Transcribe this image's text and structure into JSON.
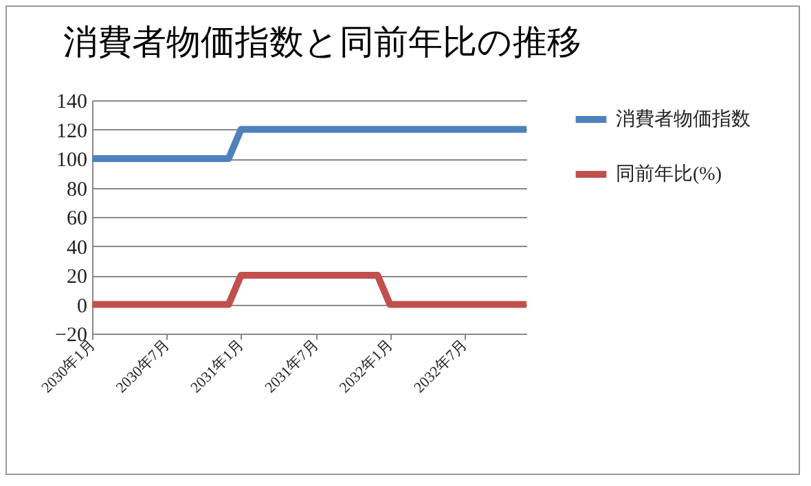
{
  "chart_data": {
    "type": "line",
    "title": "消費者物価指数と同前年比の推移",
    "categories": [
      "2030年1月",
      null,
      null,
      null,
      null,
      null,
      "2030年7月",
      null,
      null,
      null,
      null,
      null,
      "2031年1月",
      null,
      null,
      null,
      null,
      null,
      "2031年7月",
      null,
      null,
      null,
      null,
      null,
      "2032年1月",
      null,
      null,
      null,
      null,
      null,
      "2032年7月",
      null,
      null,
      null,
      null,
      null
    ],
    "series": [
      {
        "name": "消費者物価指数",
        "color": "#4f81bd",
        "values": [
          100,
          100,
          100,
          100,
          100,
          100,
          100,
          100,
          100,
          100,
          100,
          100,
          120,
          120,
          120,
          120,
          120,
          120,
          120,
          120,
          120,
          120,
          120,
          120,
          120,
          120,
          120,
          120,
          120,
          120,
          120,
          120,
          120,
          120,
          120,
          120
        ]
      },
      {
        "name": "同前年比(%)",
        "color": "#c0504d",
        "values": [
          0,
          0,
          0,
          0,
          0,
          0,
          0,
          0,
          0,
          0,
          0,
          0,
          20,
          20,
          20,
          20,
          20,
          20,
          20,
          20,
          20,
          20,
          20,
          20,
          0,
          0,
          0,
          0,
          0,
          0,
          0,
          0,
          0,
          0,
          0,
          0
        ]
      }
    ],
    "ylim": [
      -20,
      140
    ],
    "yticks": [
      -20,
      0,
      20,
      40,
      60,
      80,
      100,
      120,
      140
    ],
    "grid": "y",
    "legend": "right"
  }
}
